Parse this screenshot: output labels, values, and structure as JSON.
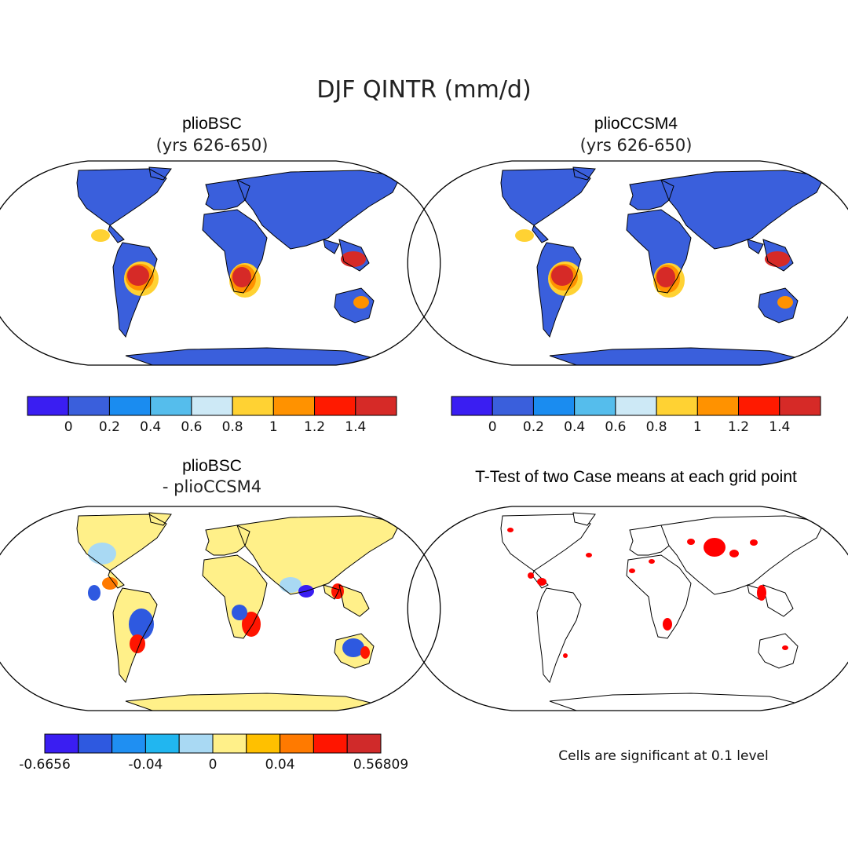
{
  "figure": {
    "main_title": "DJF QINTR (mm/d)",
    "panels": [
      {
        "id": "plioBSC",
        "title": "plioBSC",
        "subtitle": "(yrs 626-650)",
        "colorbar": {
          "colors": [
            "#3a1ef2",
            "#3a5fdc",
            "#1a8cf0",
            "#55bdec",
            "#cde9f6",
            "#ffd233",
            "#ff9200",
            "#ff1a00",
            "#d62a27"
          ],
          "labels": [
            "0",
            "0.2",
            "0.4",
            "0.6",
            "0.8",
            "1",
            "1.2",
            "1.4"
          ]
        }
      },
      {
        "id": "plioCCSM4",
        "title": "plioCCSM4",
        "subtitle": "(yrs 626-650)",
        "colorbar": {
          "colors": [
            "#3a1ef2",
            "#3a5fdc",
            "#1a8cf0",
            "#55bdec",
            "#cde9f6",
            "#ffd233",
            "#ff9200",
            "#ff1a00",
            "#d62a27"
          ],
          "labels": [
            "0",
            "0.2",
            "0.4",
            "0.6",
            "0.8",
            "1",
            "1.2",
            "1.4"
          ]
        }
      },
      {
        "id": "difference",
        "title": "plioBSC",
        "subtitle": "- plioCCSM4",
        "colorbar": {
          "colors": [
            "#3a1ef2",
            "#2e59e0",
            "#1f8ff2",
            "#21b6f0",
            "#a9d9f3",
            "#fff089",
            "#ffc000",
            "#ff7a00",
            "#ff1500",
            "#d02a2a"
          ],
          "labels": [
            "-0.6656",
            "-0.04",
            "0",
            "0.04",
            "0.56809"
          ]
        }
      },
      {
        "id": "ttest",
        "title": "T-Test of two Case means at each grid point",
        "note": "Cells are significant at 0.1 level",
        "significance_color": "#ff0000"
      }
    ]
  }
}
